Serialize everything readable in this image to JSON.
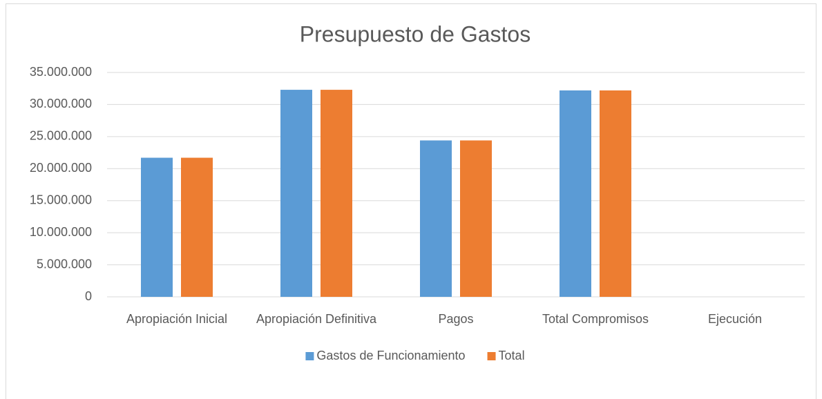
{
  "chart_data": {
    "type": "bar",
    "title": "Presupuesto de Gastos",
    "categories": [
      "Apropiación Inicial",
      "Apropiación Definitiva",
      "Pagos",
      "Total Compromisos",
      "Ejecución"
    ],
    "series": [
      {
        "name": "Gastos de Funcionamiento",
        "color": "#5b9bd5",
        "values": [
          21700000,
          32300000,
          24400000,
          32200000,
          0
        ]
      },
      {
        "name": "Total",
        "color": "#ed7d31",
        "values": [
          21700000,
          32300000,
          24400000,
          32200000,
          0
        ]
      }
    ],
    "ylim": [
      0,
      35000000
    ],
    "yticks": [
      0,
      {
        "value": 5000000,
        "label": "5.000.000"
      },
      {
        "value": 10000000,
        "label": "10.000.000"
      },
      {
        "value": 15000000,
        "label": "15.000.000"
      },
      {
        "value": 20000000,
        "label": "20.000.000"
      },
      {
        "value": 25000000,
        "label": "25.000.000"
      },
      {
        "value": 30000000,
        "label": "30.000.000"
      },
      {
        "value": 35000000,
        "label": "35.000.000"
      }
    ],
    "grid": true,
    "legend": "bottom"
  }
}
